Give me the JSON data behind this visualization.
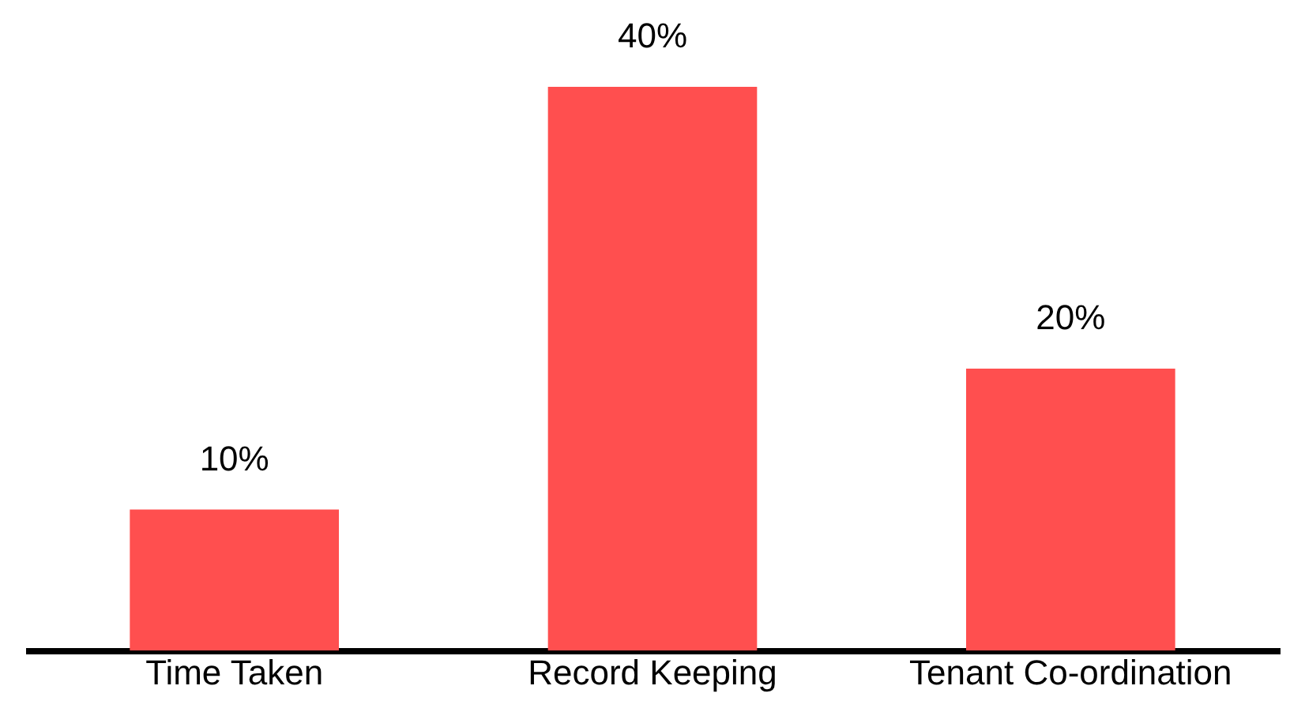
{
  "chart_data": {
    "type": "bar",
    "categories": [
      "Time Taken",
      "Record Keeping",
      "Tenant Co-ordination"
    ],
    "values": [
      10,
      40,
      20
    ],
    "value_labels": [
      "10%",
      "40%",
      "20%"
    ],
    "color": "#ff4f4f",
    "grid": false
  }
}
